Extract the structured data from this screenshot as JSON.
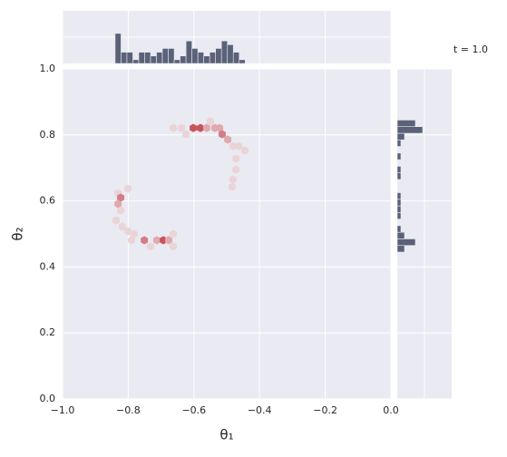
{
  "chart_data": [
    {
      "type": "hexbin",
      "annotation": "t = 1.0",
      "xlabel": "θ₁",
      "ylabel": "θ₂",
      "x": [
        -0.663,
        -0.638,
        -0.624,
        -0.602,
        -0.58,
        -0.561,
        -0.55,
        -0.536,
        -0.522,
        -0.514,
        -0.497,
        -0.481,
        -0.464,
        -0.445,
        -0.472,
        -0.472,
        -0.481,
        -0.483,
        -0.801,
        -0.831,
        -0.823,
        -0.831,
        -0.823,
        -0.837,
        -0.818,
        -0.801,
        -0.782,
        -0.79,
        -0.751,
        -0.732,
        -0.713,
        -0.693,
        -0.677,
        -0.663,
        -0.663
      ],
      "y": [
        0.821,
        0.821,
        0.802,
        0.821,
        0.821,
        0.821,
        0.841,
        0.821,
        0.821,
        0.802,
        0.786,
        0.766,
        0.766,
        0.753,
        0.728,
        0.695,
        0.665,
        0.643,
        0.637,
        0.624,
        0.61,
        0.591,
        0.571,
        0.541,
        0.522,
        0.508,
        0.5,
        0.481,
        0.481,
        0.462,
        0.481,
        0.481,
        0.481,
        0.5,
        0.462
      ],
      "values": [
        1,
        1,
        1,
        4,
        4,
        2,
        1,
        2,
        2,
        3,
        2,
        1,
        1,
        1,
        1,
        1,
        1,
        1,
        1,
        1,
        3,
        2,
        1,
        1,
        1,
        1,
        1,
        1,
        3,
        1,
        2,
        4,
        2,
        1,
        1
      ],
      "colors": [
        "#ead4d8",
        "#c9525b"
      ],
      "xlim": [
        -1,
        0
      ],
      "ylim": [
        0,
        1
      ],
      "xticks": [
        {
          "value": -1,
          "label": "−1.0"
        },
        {
          "value": -0.8,
          "label": "−0.8"
        },
        {
          "value": -0.6,
          "label": "−0.6"
        },
        {
          "value": -0.4,
          "label": "−0.4"
        },
        {
          "value": -0.2,
          "label": "−0.2"
        },
        {
          "value": 0,
          "label": "0.0"
        }
      ],
      "yticks": [
        {
          "value": 0,
          "label": "0.0"
        },
        0.2,
        0.4,
        0.6,
        0.8,
        {
          "value": 1,
          "label": "1.0"
        }
      ],
      "grid": true
    },
    {
      "type": "histogram",
      "orientation": "vertical",
      "color": "#5a6178",
      "bins": [
        -0.84,
        -0.822,
        -0.804,
        -0.786,
        -0.768,
        -0.75,
        -0.732,
        -0.714,
        -0.696,
        -0.678,
        -0.66,
        -0.642,
        -0.624,
        -0.606,
        -0.588,
        -0.57,
        -0.552,
        -0.534,
        -0.516,
        -0.498,
        -0.48,
        -0.462,
        -0.444
      ],
      "values": [
        8,
        3,
        3,
        1,
        3,
        3,
        2,
        3,
        4,
        4,
        1,
        2,
        6,
        4,
        3,
        2,
        3,
        4,
        6,
        5,
        3,
        1
      ],
      "ylim": [
        0,
        14
      ]
    },
    {
      "type": "histogram",
      "orientation": "horizontal",
      "color": "#5a6178",
      "bins": [
        0.445,
        0.465,
        0.485,
        0.505,
        0.525,
        0.545,
        0.565,
        0.585,
        0.605,
        0.625,
        0.645,
        0.665,
        0.685,
        0.705,
        0.725,
        0.745,
        0.765,
        0.785,
        0.805,
        0.825,
        0.845
      ],
      "values": [
        2,
        5,
        2,
        1,
        0,
        1,
        1,
        1,
        1,
        0,
        0,
        1,
        1,
        0,
        1,
        0,
        1,
        2,
        7,
        5
      ],
      "xlim": [
        0,
        15
      ]
    }
  ]
}
